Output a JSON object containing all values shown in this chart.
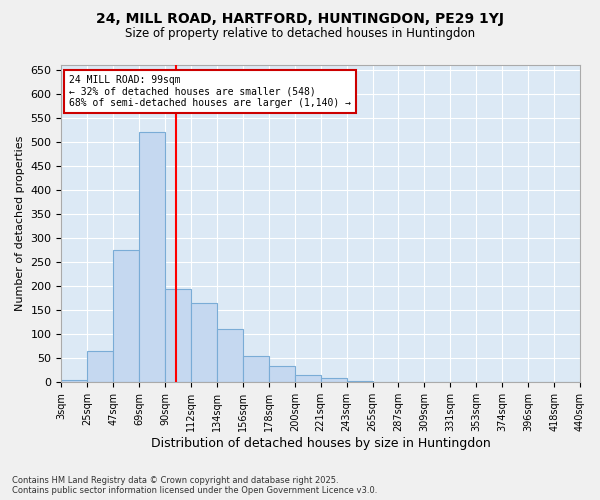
{
  "title": "24, MILL ROAD, HARTFORD, HUNTINGDON, PE29 1YJ",
  "subtitle": "Size of property relative to detached houses in Huntingdon",
  "xlabel": "Distribution of detached houses by size in Huntingdon",
  "ylabel": "Number of detached properties",
  "bin_labels": [
    "3sqm",
    "25sqm",
    "47sqm",
    "69sqm",
    "90sqm",
    "112sqm",
    "134sqm",
    "156sqm",
    "178sqm",
    "200sqm",
    "221sqm",
    "243sqm",
    "265sqm",
    "287sqm",
    "309sqm",
    "331sqm",
    "353sqm",
    "374sqm",
    "396sqm",
    "418sqm",
    "440sqm"
  ],
  "bar_values": [
    5,
    65,
    275,
    520,
    195,
    165,
    110,
    55,
    35,
    15,
    10,
    2,
    0,
    0,
    0,
    0,
    0,
    0,
    0,
    0
  ],
  "bar_color": "#c5d8f0",
  "bar_edge_color": "#7aacd6",
  "annotation_line1": "24 MILL ROAD: 99sqm",
  "annotation_line2": "← 32% of detached houses are smaller (548)",
  "annotation_line3": "68% of semi-detached houses are larger (1,140) →",
  "annotation_box_color": "#ffffff",
  "annotation_box_edge": "#cc0000",
  "ylim": [
    0,
    660
  ],
  "yticks": [
    0,
    50,
    100,
    150,
    200,
    250,
    300,
    350,
    400,
    450,
    500,
    550,
    600,
    650
  ],
  "red_line_x": 3.91,
  "footer1": "Contains HM Land Registry data © Crown copyright and database right 2025.",
  "footer2": "Contains public sector information licensed under the Open Government Licence v3.0.",
  "plot_bg_color": "#dce9f5",
  "fig_bg_color": "#f0f0f0"
}
